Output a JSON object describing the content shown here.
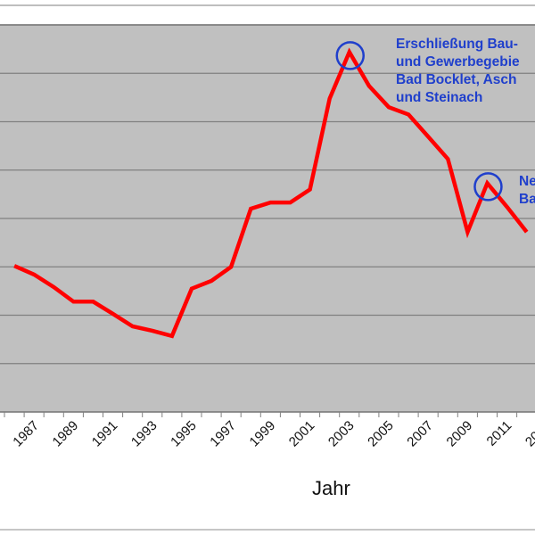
{
  "chart_data": {
    "type": "line",
    "title": "",
    "xlabel": "Jahr",
    "ylabel": "",
    "grid": true,
    "legend": null,
    "y_note": "Y-axis tick labels not visible (cropped); values expressed in gridline units (0 = bottom gridline, 8 = top gridline)",
    "ylim": [
      0,
      8
    ],
    "x_tick_labels": [
      "1987",
      "1989",
      "1991",
      "1993",
      "1995",
      "1997",
      "1999",
      "2001",
      "2003",
      "2005",
      "2007",
      "2009",
      "2011",
      "20.."
    ],
    "x": [
      1986,
      1987,
      1988,
      1989,
      1990,
      1991,
      1992,
      1993,
      1994,
      1995,
      1996,
      1997,
      1998,
      1999,
      2000,
      2001,
      2002,
      2003,
      2004,
      2005,
      2006,
      2007,
      2008,
      2009,
      2010,
      2011,
      2012
    ],
    "series": [
      {
        "name": "line",
        "color": "#ff0000",
        "values": [
          3.02,
          2.84,
          2.58,
          2.28,
          2.28,
          2.03,
          1.77,
          1.68,
          1.57,
          2.55,
          2.71,
          3.0,
          4.2,
          4.33,
          4.33,
          4.6,
          6.48,
          7.44,
          6.74,
          6.3,
          6.15,
          5.69,
          5.23,
          3.72,
          4.73,
          4.24,
          3.72
        ]
      }
    ],
    "annotations": [
      {
        "year": 2003,
        "marker": "circle",
        "text": "Erschließung Bau-\nund Gewerbegebie\nBad Bocklet, Asch\nund Steinach"
      },
      {
        "year": 2010,
        "marker": "circle",
        "text": "Ne\nBa"
      }
    ]
  },
  "labels": {
    "xtitle": "Jahr",
    "anno1": "Erschließung Bau-\nund Gewerbegebie\nBad Bocklet, Asch\nund Steinach",
    "anno2": "Ne\nBa"
  },
  "colors": {
    "plot_bg": "#c0c0c0",
    "grid": "#808080",
    "line": "#ff0000",
    "annotation": "#1f3fcc"
  }
}
